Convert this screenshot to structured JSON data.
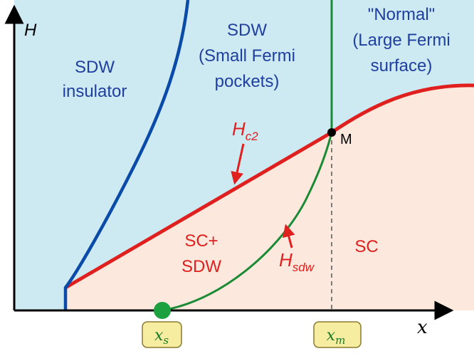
{
  "axes": {
    "y_label": "H",
    "x_label": "x"
  },
  "regions": {
    "sdw_insulator": [
      "SDW",
      "insulator"
    ],
    "sdw_small": [
      "SDW",
      "(Small Fermi",
      "pockets)"
    ],
    "normal": [
      "\"Normal\"",
      "(Large Fermi",
      "surface)"
    ],
    "sc_sdw": [
      "SC+",
      "SDW"
    ],
    "sc": "SC"
  },
  "curve_labels": {
    "hc2_main": "H",
    "hc2_sub": "c2",
    "hsdw_main": "H",
    "hsdw_sub": "sdw"
  },
  "points": {
    "M": "M"
  },
  "markers": {
    "xs_main": "x",
    "xs_sub": "s",
    "xm_main": "x",
    "xm_sub": "m"
  },
  "colors": {
    "upper_region": "#cde9f2",
    "lower_region": "#fce8dc",
    "hc2_line": "#e0201f",
    "sdw_insulator_line": "#0a4aa8",
    "green_line": "#1a8a35",
    "marker_box": "#f7eda0"
  }
}
